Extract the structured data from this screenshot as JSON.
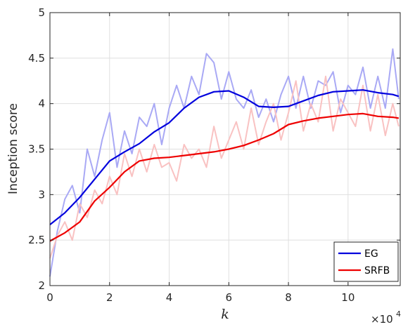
{
  "chart_data": {
    "type": "line",
    "title": "",
    "xlabel": "k",
    "ylabel": "Inception score",
    "x_multiplier_label": "×10",
    "x_multiplier_exponent": "4",
    "xlim": [
      0,
      11.75
    ],
    "ylim": [
      2,
      5
    ],
    "grid": true,
    "x_ticks": [
      0,
      2,
      4,
      6,
      8,
      10
    ],
    "x_tick_labels": [
      "0",
      "2",
      "4",
      "6",
      "8",
      "10"
    ],
    "y_ticks": [
      2,
      2.5,
      3,
      3.5,
      4,
      4.5,
      5
    ],
    "y_tick_labels": [
      "2",
      "2.5",
      "3",
      "3.5",
      "4",
      "4.5",
      "5"
    ],
    "legend_position": "bottom-right",
    "series": [
      {
        "name": "EG",
        "color": "#0000dd",
        "raw_color": "#a9a9f5",
        "x": [
          0,
          0.5,
          1,
          1.5,
          2,
          2.5,
          3,
          3.5,
          4,
          4.5,
          5,
          5.5,
          6,
          6.5,
          7,
          7.5,
          8,
          8.5,
          9,
          9.5,
          10,
          10.5,
          11,
          11.5,
          11.7
        ],
        "values": [
          2.67,
          2.8,
          2.97,
          3.17,
          3.37,
          3.47,
          3.56,
          3.69,
          3.79,
          3.95,
          4.07,
          4.13,
          4.14,
          4.07,
          3.97,
          3.96,
          3.97,
          4.03,
          4.09,
          4.13,
          4.14,
          4.15,
          4.12,
          4.1,
          4.08
        ],
        "raw_x": [
          0,
          0.25,
          0.5,
          0.75,
          1,
          1.25,
          1.5,
          1.75,
          2,
          2.25,
          2.5,
          2.75,
          3,
          3.25,
          3.5,
          3.75,
          4,
          4.25,
          4.5,
          4.75,
          5,
          5.25,
          5.5,
          5.75,
          6,
          6.25,
          6.5,
          6.75,
          7,
          7.25,
          7.5,
          7.75,
          8,
          8.25,
          8.5,
          8.75,
          9,
          9.25,
          9.5,
          9.75,
          10,
          10.25,
          10.5,
          10.75,
          11,
          11.25,
          11.5,
          11.7
        ],
        "raw_values": [
          2.1,
          2.6,
          2.95,
          3.1,
          2.8,
          3.5,
          3.2,
          3.6,
          3.9,
          3.3,
          3.7,
          3.45,
          3.85,
          3.75,
          4.0,
          3.55,
          3.95,
          4.2,
          3.95,
          4.3,
          4.1,
          4.55,
          4.45,
          4.05,
          4.35,
          4.05,
          3.95,
          4.15,
          3.85,
          4.05,
          3.8,
          4.1,
          4.3,
          3.95,
          4.3,
          3.95,
          4.25,
          4.2,
          4.35,
          3.9,
          4.2,
          4.1,
          4.4,
          3.95,
          4.3,
          3.95,
          4.6,
          4.05
        ]
      },
      {
        "name": "SRFB",
        "color": "#ee0000",
        "raw_color": "#f9c2c2",
        "x": [
          0,
          0.5,
          1,
          1.5,
          2,
          2.5,
          3,
          3.5,
          4,
          4.5,
          5,
          5.5,
          6,
          6.5,
          7,
          7.5,
          8,
          8.5,
          9,
          9.5,
          10,
          10.5,
          11,
          11.5,
          11.7
        ],
        "values": [
          2.49,
          2.58,
          2.7,
          2.93,
          3.08,
          3.25,
          3.37,
          3.4,
          3.41,
          3.43,
          3.45,
          3.47,
          3.5,
          3.54,
          3.6,
          3.67,
          3.77,
          3.81,
          3.84,
          3.86,
          3.88,
          3.89,
          3.86,
          3.85,
          3.84
        ],
        "raw_x": [
          0,
          0.25,
          0.5,
          0.75,
          1,
          1.25,
          1.5,
          1.75,
          2,
          2.25,
          2.5,
          2.75,
          3,
          3.25,
          3.5,
          3.75,
          4,
          4.25,
          4.5,
          4.75,
          5,
          5.25,
          5.5,
          5.75,
          6,
          6.25,
          6.5,
          6.75,
          7,
          7.25,
          7.5,
          7.75,
          8,
          8.25,
          8.5,
          8.75,
          9,
          9.25,
          9.5,
          9.75,
          10,
          10.25,
          10.5,
          10.75,
          11,
          11.25,
          11.5,
          11.7
        ],
        "raw_values": [
          2.3,
          2.55,
          2.7,
          2.5,
          2.9,
          2.75,
          3.05,
          2.9,
          3.2,
          3.0,
          3.45,
          3.2,
          3.5,
          3.25,
          3.55,
          3.3,
          3.35,
          3.15,
          3.55,
          3.4,
          3.5,
          3.3,
          3.75,
          3.4,
          3.6,
          3.8,
          3.5,
          3.95,
          3.55,
          3.8,
          4.0,
          3.6,
          3.9,
          4.25,
          3.7,
          4.0,
          3.8,
          4.3,
          3.7,
          4.05,
          3.9,
          3.75,
          4.2,
          3.7,
          4.1,
          3.65,
          4.0,
          3.75
        ]
      }
    ]
  }
}
